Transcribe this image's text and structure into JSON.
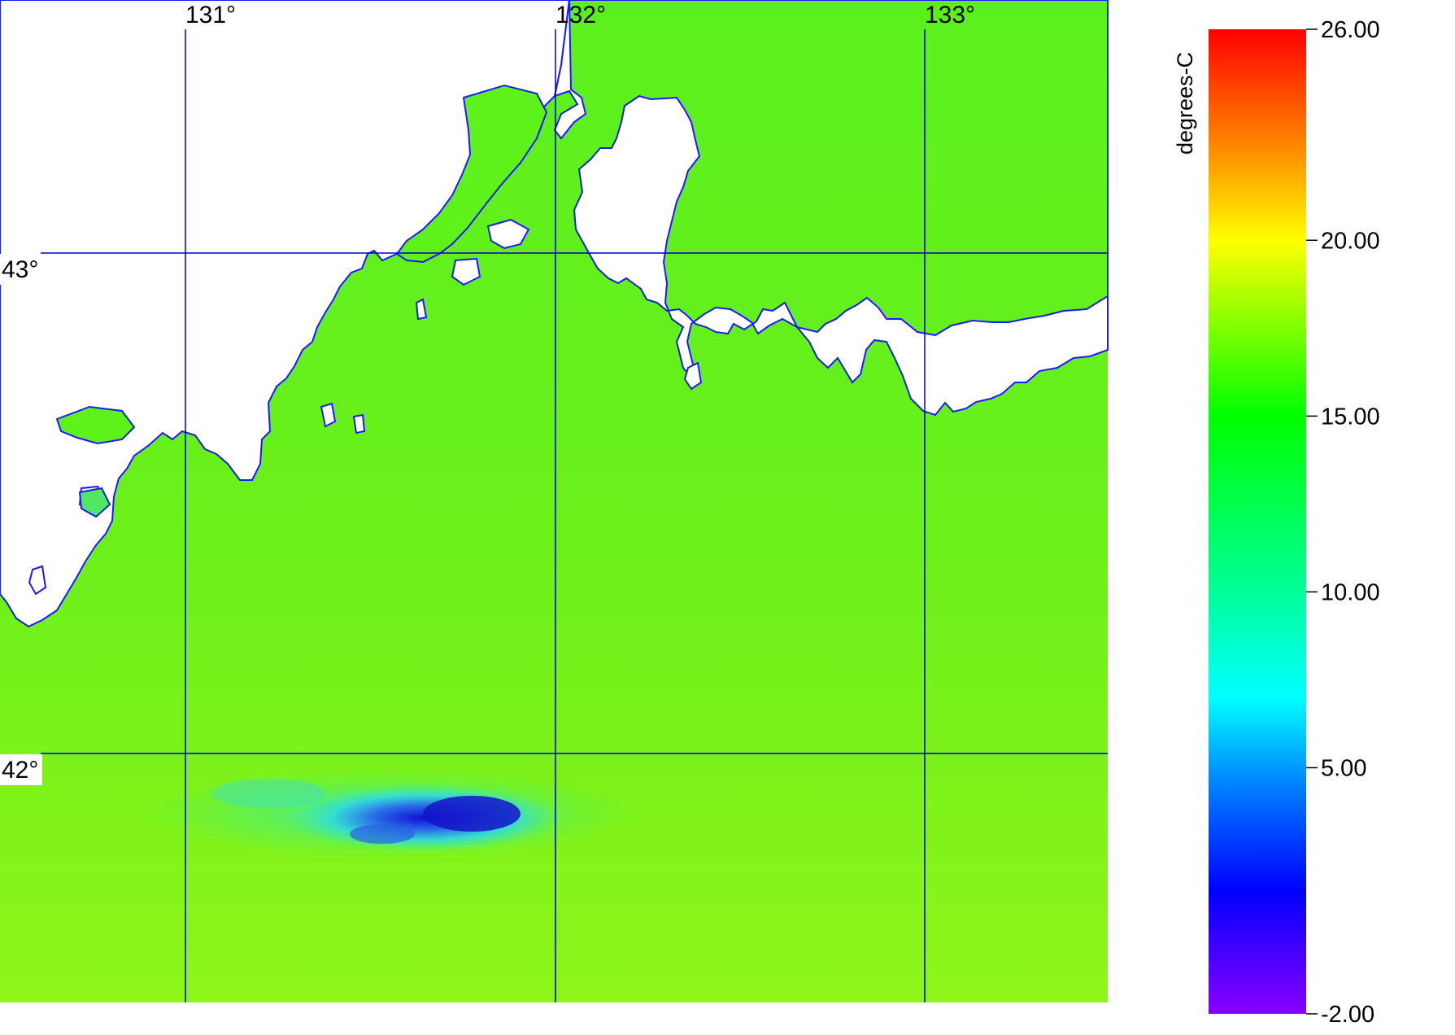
{
  "map": {
    "longitude_labels": [
      "131°",
      "132°",
      "133°"
    ],
    "latitude_labels": [
      "43°",
      "42°"
    ],
    "colors": {
      "land": "#ffffff",
      "coastline": "#1a1aff",
      "gridlines": "#0000cc",
      "sea_base": "#5ef21a",
      "cold_anomaly_core": "#1818d8",
      "cold_anomaly_edge": "#36d8e8"
    }
  },
  "colorbar": {
    "unit_label": "degrees-C",
    "tick_labels": [
      "26.00",
      "20.00",
      "15.00",
      "10.00",
      "5.00",
      "-2.00"
    ],
    "range": [
      -2,
      26
    ],
    "stops": [
      {
        "value": 26,
        "color": "#ff0000"
      },
      {
        "value": 23,
        "color": "#ff7a00"
      },
      {
        "value": 20,
        "color": "#ffff00"
      },
      {
        "value": 17.5,
        "color": "#80ff00"
      },
      {
        "value": 15,
        "color": "#00ff00"
      },
      {
        "value": 10,
        "color": "#00ff99"
      },
      {
        "value": 7,
        "color": "#00ffff"
      },
      {
        "value": 4.5,
        "color": "#0080ff"
      },
      {
        "value": 1.5,
        "color": "#0000ff"
      },
      {
        "value": -2,
        "color": "#8800ff"
      }
    ]
  }
}
